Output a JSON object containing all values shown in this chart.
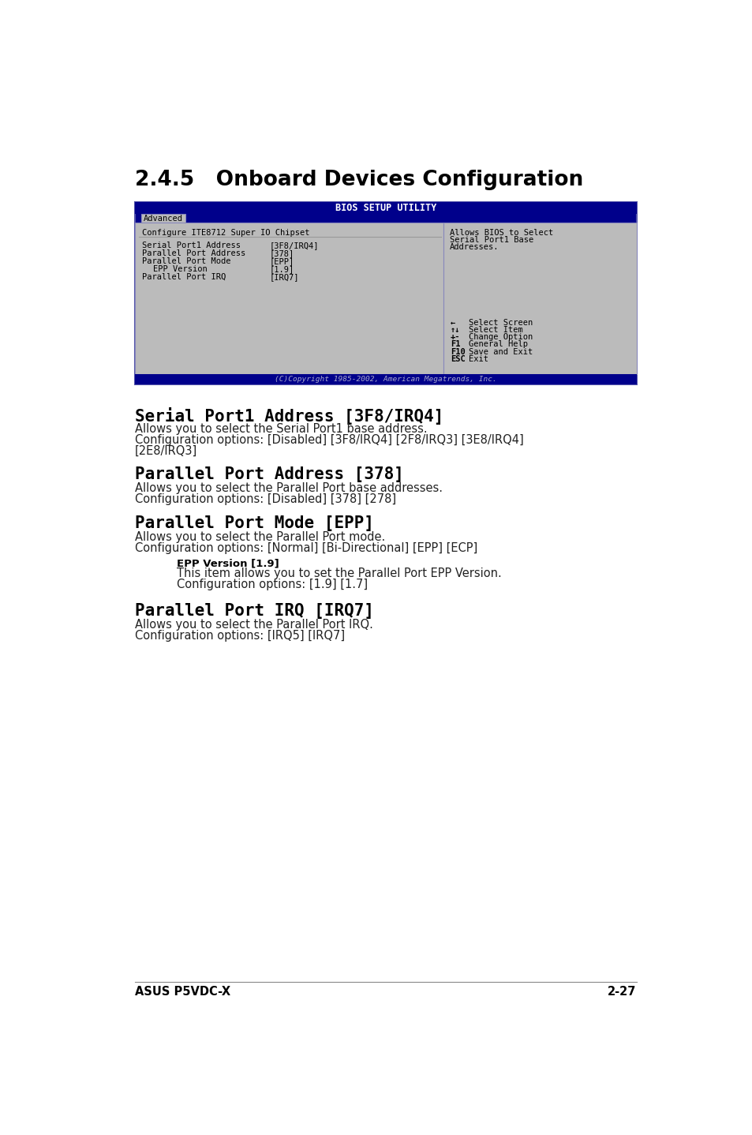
{
  "page_title": "2.4.5   Onboard Devices Configuration",
  "bg_color": "#ffffff",
  "bios_screen": {
    "outer_bg": "#00008B",
    "inner_bg": "#BBBBBB",
    "header_text": "BIOS SETUP UTILITY",
    "header_color": "#00008B",
    "header_text_color": "#ffffff",
    "tab_text": "Advanced",
    "tab_bg": "#BBBBBB",
    "tab_border": "#9999cc",
    "left_panel_title": "Configure ITE8712 Super IO Chipset",
    "menu_items": [
      {
        "label": "Serial Port1 Address",
        "indent": 0,
        "value": "[3F8/IRQ4]"
      },
      {
        "label": "Parallel Port Address",
        "indent": 0,
        "value": "[378]"
      },
      {
        "label": "Parallel Port Mode",
        "indent": 0,
        "value": "[EPP]"
      },
      {
        "label": "EPP Version",
        "indent": 1,
        "value": "[1.9]"
      },
      {
        "label": "Parallel Port IRQ",
        "indent": 0,
        "value": "[IRQ7]"
      }
    ],
    "right_panel_lines": [
      "Allows BIOS to Select",
      "Serial Port1 Base",
      "Addresses."
    ],
    "nav_items": [
      [
        "←",
        "Select Screen"
      ],
      [
        "↑↓",
        "Select Item"
      ],
      [
        "+-",
        "Change Option"
      ],
      [
        "F1",
        "General Help"
      ],
      [
        "F10",
        "Save and Exit"
      ],
      [
        "ESC",
        "Exit"
      ]
    ],
    "footer_text": "(C)Copyright 1985-2002, American Megatrends, Inc.",
    "footer_bg": "#00008B",
    "footer_text_color": "#aaaacc"
  },
  "sections": [
    {
      "title": "Serial Port1 Address [3F8/IRQ4]",
      "bold": true,
      "body_lines": [
        "Allows you to select the Serial Port1 base address.",
        "Configuration options: [Disabled] [3F8/IRQ4] [2F8/IRQ3] [3E8/IRQ4]",
        "[2E8/IRQ3]"
      ]
    },
    {
      "title": "Parallel Port Address [378]",
      "bold": true,
      "body_lines": [
        "Allows you to select the Parallel Port base addresses.",
        "Configuration options: [Disabled] [378] [278]"
      ]
    },
    {
      "title": "Parallel Port Mode [EPP]",
      "bold": true,
      "body_lines": [
        "Allows you to select the Parallel Port mode.",
        "Configuration options: [Normal] [Bi-Directional] [EPP] [ECP]"
      ],
      "sub_sections": [
        {
          "title": "EPP Version [1.9]",
          "bold": true,
          "body_lines": [
            "This item allows you to set the Parallel Port EPP Version.",
            "Configuration options: [1.9] [1.7]"
          ]
        }
      ]
    },
    {
      "title": "Parallel Port IRQ [IRQ7]",
      "bold": true,
      "body_lines": [
        "Allows you to select the Parallel Port IRQ.",
        "Configuration options: [IRQ5] [IRQ7]"
      ]
    }
  ],
  "footer_left": "ASUS P5VDC-X",
  "footer_right": "2-27"
}
